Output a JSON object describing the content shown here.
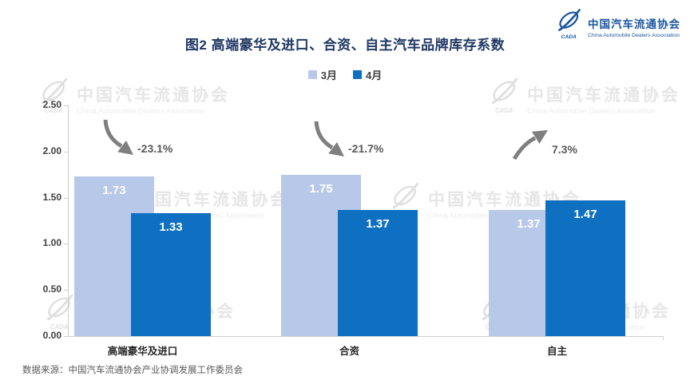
{
  "header": {
    "title": "图2  高端豪华及进口、合资、自主汽车品牌库存系数",
    "logo": {
      "name_cn": "中国汽车流通协会",
      "name_en": "China Automobile Dealers Association",
      "abbr": "CADA",
      "color": "#1a56a0"
    }
  },
  "legend": [
    {
      "label": "3月",
      "color": "#b7c8e8"
    },
    {
      "label": "4月",
      "color": "#0f70c2"
    }
  ],
  "chart_data": {
    "type": "bar",
    "title": "图2  高端豪华及进口、合资、自主汽车品牌库存系数",
    "categories": [
      "高端豪华及进口",
      "合资",
      "自主"
    ],
    "series": [
      {
        "name": "3月",
        "values": [
          1.73,
          1.75,
          1.37
        ],
        "color": "#b7c8e8"
      },
      {
        "name": "4月",
        "values": [
          1.33,
          1.37,
          1.47
        ],
        "color": "#0f70c2"
      }
    ],
    "changes": [
      {
        "label": "-23.1%",
        "direction": "down"
      },
      {
        "label": "-21.7%",
        "direction": "down"
      },
      {
        "label": "7.3%",
        "direction": "up"
      }
    ],
    "ylim": [
      0,
      2.5
    ],
    "yticks": [
      "0.00",
      "0.50",
      "1.00",
      "1.50",
      "2.00",
      "2.50"
    ],
    "grid": false,
    "legend_position": "top",
    "value_label_color": "#ffffff",
    "arrow_color": "#7f7f7f"
  },
  "watermark": {
    "cn": "中国汽车流通协会",
    "en": "China Automobile Dealers Association",
    "abbr": "CADA"
  },
  "footer": {
    "source": "数据来源：中国汽车流通协会产业协调发展工作委员会"
  }
}
